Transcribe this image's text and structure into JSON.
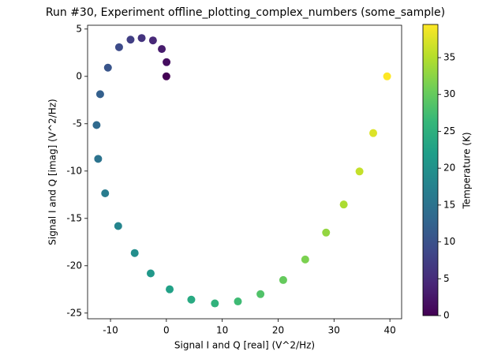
{
  "chart_data": {
    "type": "scatter",
    "title": "Run #30, Experiment offline_plotting_complex_numbers (some_sample)",
    "x_label": "Signal I and Q [real] (V^2/Hz)",
    "y_label": "Signal I and Q [imag] (V^2/Hz)",
    "colorbar_label": "Temperature (K)",
    "colormap": "viridis",
    "x": [
      0,
      0.03,
      -0.82,
      -2.4,
      -4.42,
      -6.41,
      -8.46,
      -10.46,
      -11.85,
      -12.49,
      -12.21,
      -10.96,
      -8.62,
      -5.67,
      -2.81,
      0.59,
      4.46,
      8.68,
      12.8,
      16.84,
      20.91,
      24.85,
      28.58,
      31.74,
      34.56,
      37.02,
      39.5
    ],
    "y": [
      0,
      1.5,
      2.89,
      3.8,
      4.05,
      3.88,
      3.08,
      0.92,
      -1.88,
      -5.14,
      -8.71,
      -12.35,
      -15.81,
      -18.66,
      -20.81,
      -22.49,
      -23.58,
      -23.98,
      -23.77,
      -23,
      -21.51,
      -19.34,
      -16.5,
      -13.53,
      -10.04,
      -5.99,
      0
    ],
    "c": [
      0,
      1.5,
      3,
      4.5,
      6,
      7.5,
      9,
      10.5,
      12,
      13.5,
      15,
      16.5,
      18,
      19.5,
      21,
      22.5,
      24,
      25.5,
      27,
      28.5,
      30,
      31.5,
      33,
      34.5,
      36,
      37.5,
      39.5
    ],
    "xlim": [
      -14.1,
      42.1
    ],
    "xticks": [
      -10,
      0,
      10,
      20,
      30,
      40
    ],
    "ylim": [
      -25.6,
      5.4
    ],
    "yticks": [
      -25,
      -20,
      -15,
      -10,
      -5,
      0,
      5
    ],
    "clim": [
      0,
      39.5
    ],
    "cticks": [
      0,
      5,
      10,
      15,
      20,
      25,
      30,
      35
    ]
  }
}
